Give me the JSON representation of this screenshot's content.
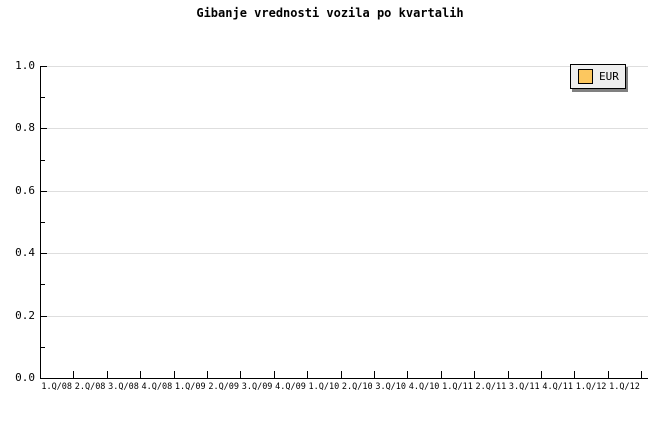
{
  "title": "Gibanje vrednosti vozila po kvartalih",
  "chart_data": {
    "type": "line",
    "title": "Gibanje vrednosti vozila po kvartalih",
    "categories": [
      "1.Q/08",
      "2.Q/08",
      "3.Q/08",
      "4.Q/08",
      "1.Q/09",
      "2.Q/09",
      "3.Q/09",
      "4.Q/09",
      "1.Q/10",
      "2.Q/10",
      "3.Q/10",
      "4.Q/10",
      "1.Q/11",
      "2.Q/11",
      "3.Q/11",
      "4.Q/11",
      "1.Q/12",
      "1.Q/12"
    ],
    "series": [
      {
        "name": "EUR",
        "color": "#fcc75f",
        "values": []
      }
    ],
    "y_axis": {
      "min": 0.0,
      "max": 1.0,
      "major_step": 0.2,
      "minor_step": 0.1,
      "tick_labels": [
        "0.0",
        "0.2",
        "0.4",
        "0.6",
        "0.8",
        "1.0"
      ]
    },
    "x_axis": {
      "tick_position": "category-boundaries",
      "label_position": "category-centers"
    },
    "grid": {
      "horizontal": true,
      "vertical": false,
      "color": "#dedede"
    },
    "legend": {
      "position": "top-right",
      "entries": [
        {
          "label": "EUR",
          "swatch_color": "#fcc75f"
        }
      ]
    },
    "colors": {
      "background": "#ffffff",
      "axis": "#000000",
      "text": "#000000",
      "legend_background": "#efefef",
      "legend_border": "#000000",
      "legend_shadow": "#808080"
    }
  }
}
